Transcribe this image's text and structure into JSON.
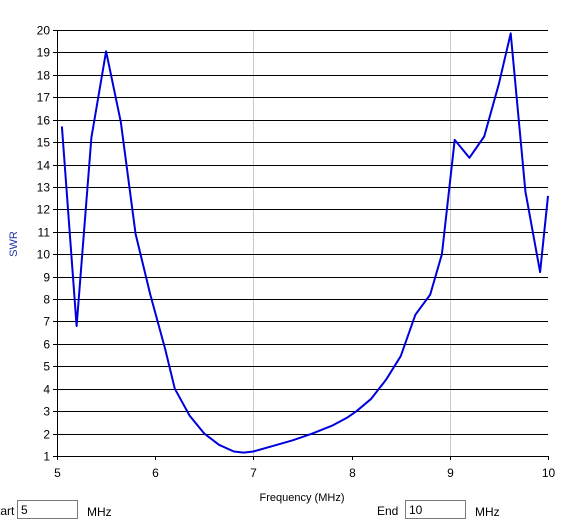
{
  "chart_data": {
    "type": "line",
    "xlabel": "Frequency (MHz)",
    "ylabel": "SWR",
    "xlim": [
      5,
      10
    ],
    "ylim": [
      1,
      20
    ],
    "x_ticks": [
      5,
      6,
      7,
      8,
      9,
      10
    ],
    "y_ticks": [
      1,
      2,
      3,
      4,
      5,
      6,
      7,
      8,
      9,
      10,
      11,
      12,
      13,
      14,
      15,
      16,
      17,
      18,
      19,
      20
    ],
    "x_gridlines": [
      7,
      9
    ],
    "y_gridlines": "every 1 SWR unit",
    "legend": "none",
    "series": [
      {
        "color": "#0000dd",
        "x": [
          5.05,
          5.2,
          5.35,
          5.5,
          5.65,
          5.8,
          5.95,
          6.1,
          6.2,
          6.35,
          6.5,
          6.65,
          6.8,
          6.9,
          7.0,
          7.2,
          7.4,
          7.6,
          7.8,
          7.95,
          8.05,
          8.2,
          8.35,
          8.5,
          8.65,
          8.8,
          8.92,
          9.05,
          9.2,
          9.35,
          9.5,
          9.62,
          9.77,
          9.92,
          10.0
        ],
        "y": [
          15.7,
          6.8,
          15.2,
          19.05,
          15.9,
          10.9,
          8.2,
          5.8,
          4.0,
          2.8,
          2.0,
          1.5,
          1.2,
          1.15,
          1.2,
          1.45,
          1.7,
          2.0,
          2.35,
          2.7,
          3.0,
          3.55,
          4.4,
          5.45,
          7.3,
          8.2,
          10.0,
          15.1,
          14.3,
          15.25,
          17.6,
          19.85,
          12.8,
          9.2,
          12.6
        ]
      }
    ]
  },
  "controls": {
    "start_label": "Start",
    "start_value": "5",
    "start_unit": "MHz",
    "end_label": "End",
    "end_value": "10",
    "end_unit": "MHz"
  },
  "colors": {
    "line": "#0000dd",
    "grid": "#000000",
    "vgrid": "#c8c8c8",
    "ylabel": "#2233aa",
    "xlabel": "#000000"
  }
}
